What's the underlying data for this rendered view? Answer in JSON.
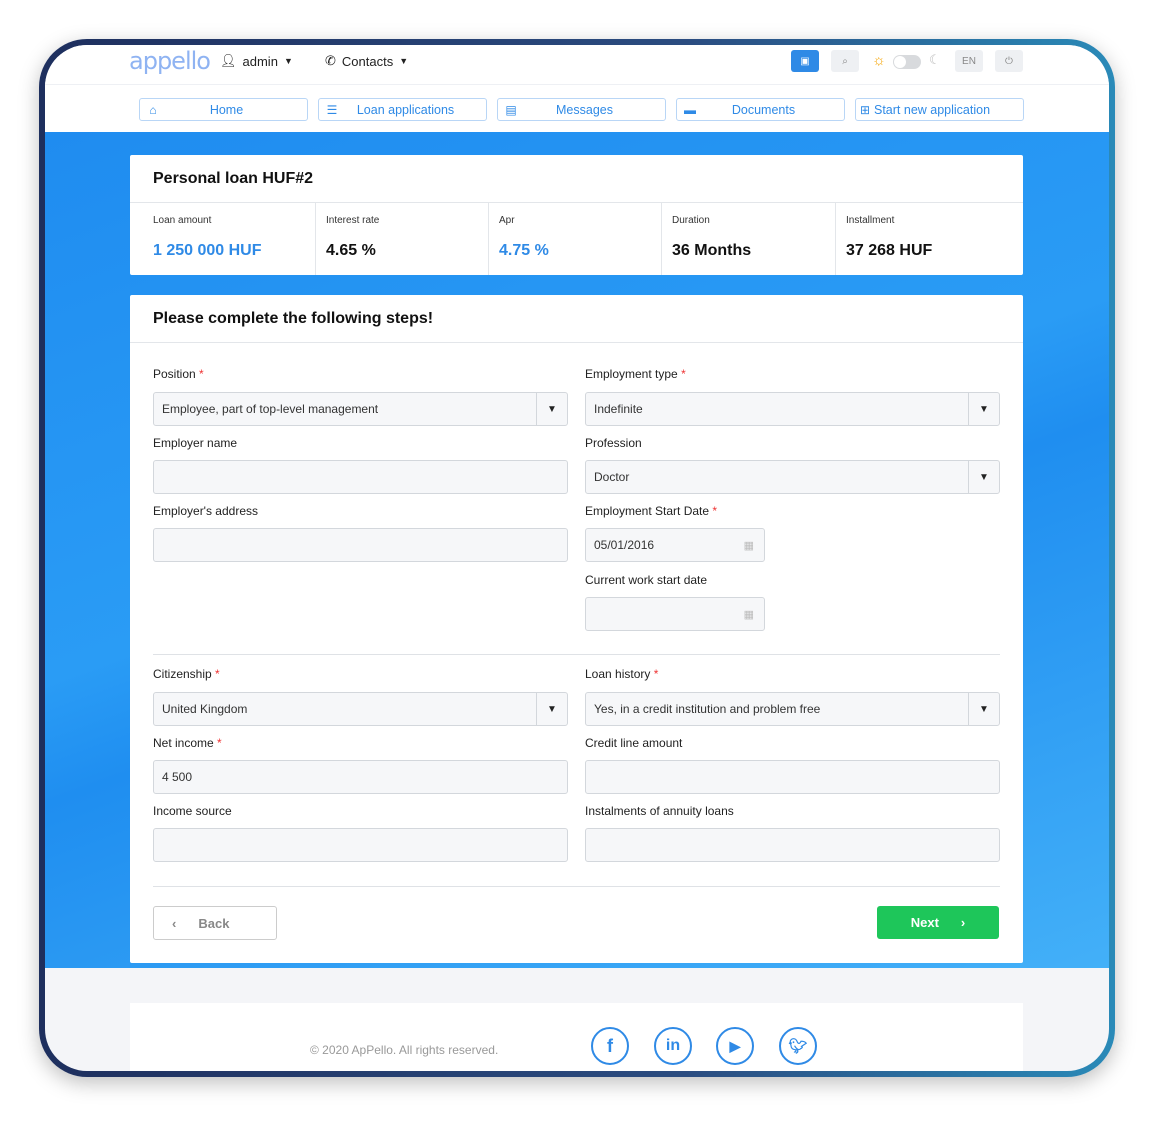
{
  "header": {
    "logo": "appello",
    "user": "admin",
    "contacts": "Contacts",
    "lang": "EN"
  },
  "nav": [
    {
      "label": "Home",
      "icon": "home-icon"
    },
    {
      "label": "Loan applications",
      "icon": "list-icon"
    },
    {
      "label": "Messages",
      "icon": "message-icon"
    },
    {
      "label": "Documents",
      "icon": "folder-icon"
    },
    {
      "label": "Start new application",
      "icon": "plus-square-icon"
    }
  ],
  "summary": {
    "title": "Personal loan HUF#2",
    "items": [
      {
        "label": "Loan amount",
        "value": "1 250 000 HUF"
      },
      {
        "label": "Interest rate",
        "value": "4.65 %"
      },
      {
        "label": "Apr",
        "value": "4.75 %"
      },
      {
        "label": "Duration",
        "value": "36 Months"
      },
      {
        "label": "Installment",
        "value": "37 268 HUF"
      }
    ]
  },
  "form": {
    "title": "Please complete the following steps!",
    "position": {
      "label": "Position",
      "value": "Employee, part of top-level management"
    },
    "employment_type": {
      "label": "Employment type",
      "value": "Indefinite"
    },
    "employer_name": {
      "label": "Employer name",
      "value": ""
    },
    "profession": {
      "label": "Profession",
      "value": "Doctor"
    },
    "employer_address": {
      "label": "Employer's address",
      "value": ""
    },
    "employment_start": {
      "label": "Employment Start Date",
      "value": "05/01/2016"
    },
    "current_work_start": {
      "label": "Current work start date",
      "value": ""
    },
    "citizenship": {
      "label": "Citizenship",
      "value": "United Kingdom"
    },
    "loan_history": {
      "label": "Loan history",
      "value": "Yes, in a credit institution and problem free"
    },
    "net_income": {
      "label": "Net income",
      "value": "4 500"
    },
    "credit_line": {
      "label": "Credit line amount",
      "value": ""
    },
    "income_source": {
      "label": "Income source",
      "value": ""
    },
    "instalments": {
      "label": "Instalments of annuity loans",
      "value": ""
    },
    "required_mark": "*",
    "back": "Back",
    "next": "Next"
  },
  "footer": {
    "copyright": "© 2020 ApPello. All rights reserved."
  },
  "colors": {
    "accent": "#2f8ae6",
    "next": "#1ec65a",
    "band": "#1f8cf0"
  }
}
